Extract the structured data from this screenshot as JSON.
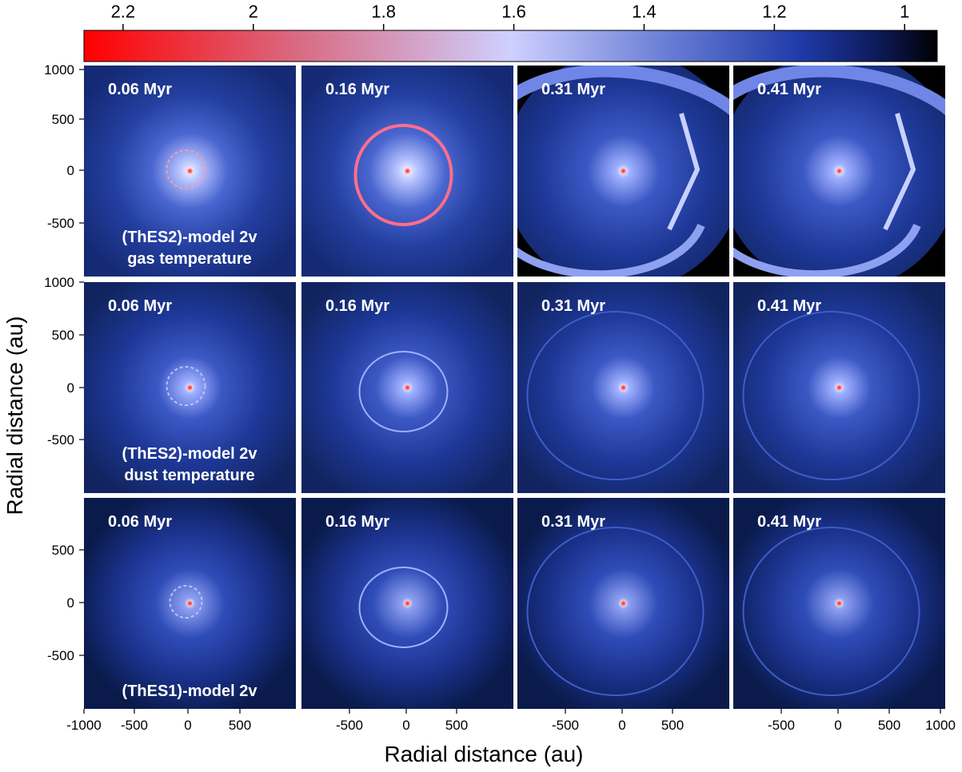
{
  "colorbar": {
    "ticks": [
      "2.2",
      "2",
      "1.8",
      "1.6",
      "1.4",
      "1.2",
      "1"
    ],
    "tick_values": [
      2.2,
      2.0,
      1.8,
      1.6,
      1.4,
      1.2,
      1.0
    ],
    "range": [
      2.26,
      0.95
    ],
    "colors": [
      "#ff0000",
      "#d96a82",
      "#cfd0ff",
      "#6a7fd6",
      "#1f3aa8",
      "#0d1a5a",
      "#000000"
    ]
  },
  "axes": {
    "ylabel": "Radial distance (au)",
    "xlabel": "Radial distance (au)",
    "row_y_ticks": [
      [
        "1000",
        "500",
        "0",
        "-500"
      ],
      [
        "1000",
        "500",
        "0",
        "-500"
      ],
      [
        "500",
        "0",
        "-500"
      ]
    ],
    "col_x_ticks": [
      [
        "-1000",
        "-500",
        "0",
        "500"
      ],
      [
        "-500",
        "0",
        "500"
      ],
      [
        "-500",
        "0",
        "500"
      ],
      [
        "-500",
        "0",
        "500",
        "1000"
      ]
    ]
  },
  "panels": {
    "times": [
      "0.06 Myr",
      "0.16 Myr",
      "0.31 Myr",
      "0.41 Myr"
    ],
    "row_labels": [
      [
        "(ThES2)-model 2v",
        "gas temperature"
      ],
      [
        "(ThES2)-model 2v",
        "dust temperature"
      ],
      [
        "(ThES1)-model 2v"
      ]
    ]
  }
}
